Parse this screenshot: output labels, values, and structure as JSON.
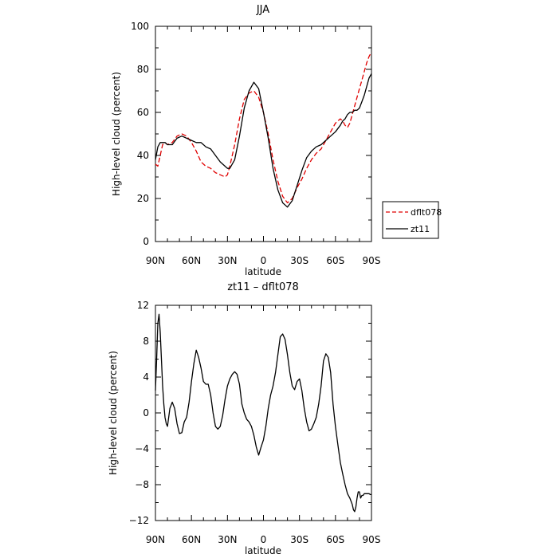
{
  "chart_data": [
    {
      "type": "line",
      "title": "JJA",
      "xlabel": "latitude",
      "ylabel": "High-level cloud (percent)",
      "xlim": [
        90,
        -90
      ],
      "ylim": [
        0,
        100
      ],
      "x_ticks": [
        90,
        60,
        30,
        0,
        -30,
        -60,
        -90
      ],
      "x_tick_labels": [
        "90N",
        "60N",
        "30N",
        "0",
        "30S",
        "60S",
        "90S"
      ],
      "y_ticks": [
        0,
        20,
        40,
        60,
        80,
        100
      ],
      "y_tick_labels": [
        "0",
        "20",
        "40",
        "60",
        "80",
        "100"
      ],
      "grid": false,
      "legend": {
        "placement": "right-outside",
        "entries": [
          "dflt078",
          "zt11"
        ]
      },
      "series": [
        {
          "name": "dflt078",
          "color": "#e00000",
          "dash": "dashed",
          "x": [
            90,
            88,
            86,
            84,
            82,
            80,
            76,
            72,
            68,
            64,
            60,
            56,
            52,
            48,
            44,
            40,
            36,
            32,
            30,
            28,
            24,
            20,
            16,
            12,
            8,
            4,
            0,
            -4,
            -8,
            -12,
            -16,
            -20,
            -24,
            -28,
            -32,
            -36,
            -40,
            -44,
            -48,
            -52,
            -56,
            -60,
            -64,
            -66,
            -68,
            -70,
            -72,
            -74,
            -76,
            -78,
            -80,
            -82,
            -84,
            -86,
            -88,
            -90
          ],
          "y": [
            36,
            35,
            40,
            45,
            46,
            45,
            46,
            49,
            50,
            49,
            46,
            42,
            37,
            35,
            34,
            32,
            31,
            30,
            31,
            35,
            45,
            57,
            66,
            69,
            70,
            67,
            60,
            50,
            38,
            28,
            21,
            18,
            20,
            25,
            29,
            34,
            38,
            41,
            43,
            47,
            51,
            55,
            57,
            56,
            54,
            53,
            55,
            59,
            63,
            67,
            71,
            75,
            79,
            83,
            86,
            88
          ]
        },
        {
          "name": "zt11",
          "color": "#000000",
          "dash": "solid",
          "x": [
            90,
            88,
            86,
            84,
            82,
            80,
            76,
            72,
            68,
            64,
            60,
            56,
            52,
            48,
            44,
            40,
            36,
            32,
            30,
            28,
            24,
            20,
            16,
            12,
            8,
            4,
            0,
            -4,
            -8,
            -12,
            -16,
            -20,
            -24,
            -28,
            -32,
            -36,
            -40,
            -44,
            -48,
            -52,
            -56,
            -60,
            -64,
            -66,
            -68,
            -70,
            -72,
            -74,
            -76,
            -78,
            -80,
            -82,
            -84,
            -86,
            -88,
            -90
          ],
          "y": [
            38,
            44,
            46,
            46,
            46,
            45,
            45,
            48,
            49,
            48,
            47,
            46,
            46,
            44,
            43,
            40,
            37,
            35,
            34,
            34,
            38,
            49,
            62,
            70,
            74,
            71,
            60,
            48,
            34,
            24,
            18,
            16,
            19,
            26,
            33,
            39,
            42,
            44,
            45,
            47,
            49,
            51,
            54,
            56,
            57,
            59,
            60,
            60,
            61,
            61,
            62,
            65,
            68,
            72,
            76,
            78
          ]
        }
      ]
    },
    {
      "type": "line",
      "title": "zt11 – dflt078",
      "xlabel": "latitude",
      "ylabel": "High-level cloud (percent)",
      "xlim": [
        90,
        -90
      ],
      "ylim": [
        -12,
        12
      ],
      "x_ticks": [
        90,
        60,
        30,
        0,
        -30,
        -60,
        -90
      ],
      "x_tick_labels": [
        "90N",
        "60N",
        "30N",
        "0",
        "30S",
        "60S",
        "90S"
      ],
      "y_ticks": [
        -12,
        -8,
        -4,
        0,
        4,
        8,
        12
      ],
      "y_tick_labels": [
        "−12",
        "−8",
        "−4",
        "0",
        "4",
        "8",
        "12"
      ],
      "grid": false,
      "series": [
        {
          "color": "#000000",
          "dash": "solid",
          "x": [
            90,
            89,
            88,
            87,
            86,
            85,
            84,
            83,
            82,
            81,
            80,
            78,
            76,
            74,
            72,
            70,
            68,
            66,
            64,
            62,
            60,
            58,
            56,
            54,
            52,
            50,
            48,
            46,
            44,
            42,
            40,
            38,
            36,
            34,
            32,
            30,
            28,
            26,
            24,
            22,
            20,
            18,
            16,
            14,
            12,
            10,
            8,
            6,
            4,
            2,
            0,
            -2,
            -4,
            -6,
            -8,
            -10,
            -12,
            -14,
            -16,
            -18,
            -20,
            -22,
            -24,
            -26,
            -28,
            -30,
            -32,
            -34,
            -36,
            -38,
            -40,
            -42,
            -44,
            -46,
            -48,
            -50,
            -52,
            -54,
            -56,
            -58,
            -60,
            -62,
            -64,
            -66,
            -68,
            -70,
            -72,
            -74,
            -75,
            -76,
            -77,
            -78,
            -79,
            -80,
            -81,
            -82,
            -83,
            -84,
            -85,
            -86,
            -87,
            -88,
            -89,
            -90
          ],
          "y": [
            2.5,
            6,
            10,
            11,
            9,
            6,
            3,
            1,
            -0.5,
            -1.2,
            -1.5,
            0.5,
            1.2,
            0.5,
            -1.2,
            -2.3,
            -2.2,
            -1,
            -0.5,
            1.2,
            3.5,
            5.5,
            7,
            6.2,
            5,
            3.5,
            3.2,
            3.2,
            2,
            0,
            -1.5,
            -1.8,
            -1.5,
            -0.3,
            1.5,
            3,
            3.8,
            4.3,
            4.6,
            4.3,
            3.2,
            1,
            0,
            -0.7,
            -1,
            -1.5,
            -2.5,
            -3.8,
            -4.7,
            -3.8,
            -3,
            -1.5,
            0.5,
            2,
            3,
            4.5,
            6.5,
            8.5,
            8.8,
            8.2,
            6.5,
            4.5,
            3,
            2.6,
            3.5,
            3.8,
            2.5,
            0.5,
            -1,
            -2,
            -1.8,
            -1.2,
            -0.5,
            1,
            3,
            5.8,
            6.6,
            6.2,
            4.5,
            1,
            -1.5,
            -3.5,
            -5.5,
            -6.8,
            -8,
            -9,
            -9.5,
            -10.2,
            -10.8,
            -11,
            -10.5,
            -9.5,
            -8.8,
            -8.8,
            -9.5,
            -9.2,
            -9.2,
            -9,
            -9,
            -9,
            -9,
            -9,
            -9.1,
            -9.1
          ]
        }
      ]
    }
  ]
}
